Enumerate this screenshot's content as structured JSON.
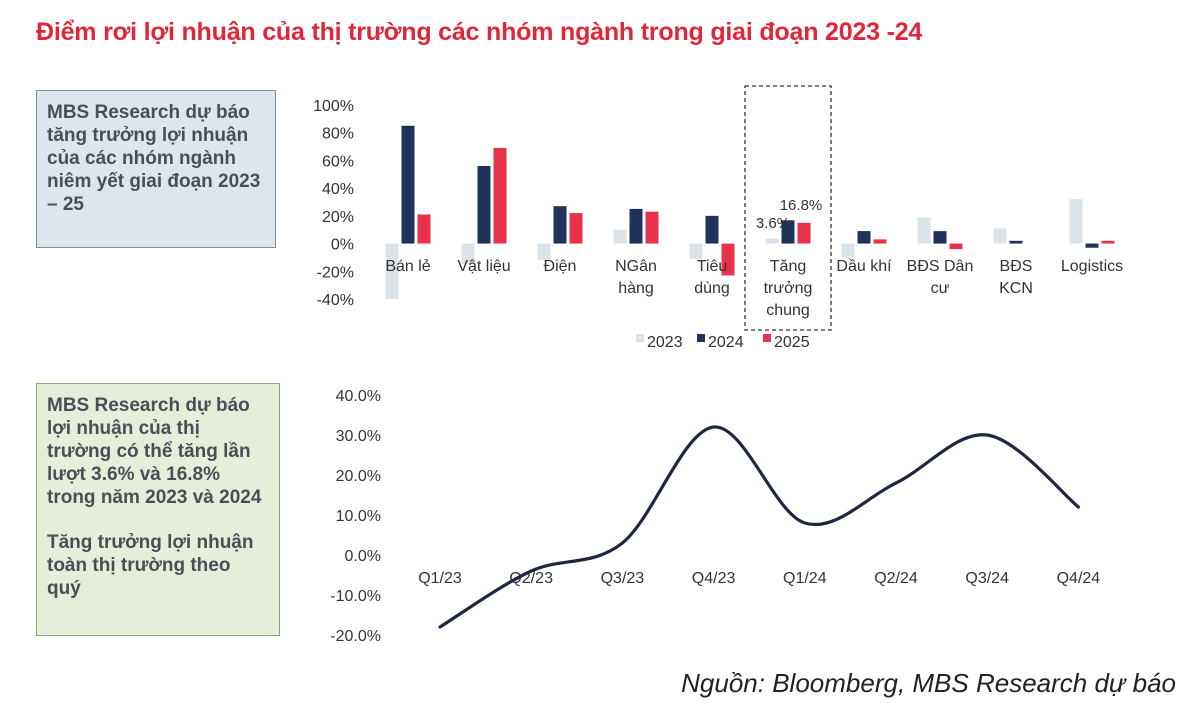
{
  "page": {
    "title": "Điểm rơi lợi nhuận của thị trường các nhóm ngành trong giai đoạn 2023 -24",
    "source": "Nguồn: Bloomberg, MBS Research dự báo"
  },
  "notes": {
    "top": "MBS Research dự báo tăng trưởng lợi nhuận của các nhóm ngành niêm yết giai đoạn 2023 – 25",
    "bottom_1": "MBS Research dự báo lợi nhuận của thị trường có thể tăng lần lượt 3.6% và 16.8% trong năm 2023 và 2024",
    "bottom_2": "Tăng trưởng lợi nhuận toàn thị trường theo quý"
  },
  "colors": {
    "title": "#e0263b",
    "s2023": "#dbe3e8",
    "s2024": "#1f3259",
    "s2025": "#e8314a",
    "line": "#1f2740"
  },
  "chart_data": [
    {
      "type": "bar",
      "title": "",
      "categories": [
        [
          "Bán lẻ"
        ],
        [
          "Vật liệu"
        ],
        [
          "Điện"
        ],
        [
          "NGân",
          "hàng"
        ],
        [
          "Tiêu",
          "dùng"
        ],
        [
          "Tăng",
          "trưởng",
          "chung"
        ],
        [
          "Dầu khí"
        ],
        [
          "BĐS Dân",
          "cư"
        ],
        [
          "BĐS",
          "KCN"
        ],
        [
          "Logistics"
        ]
      ],
      "series": [
        {
          "name": "2023",
          "values": [
            -40,
            -15,
            -12,
            10,
            -11,
            3.6,
            -10,
            19,
            11,
            32
          ]
        },
        {
          "name": "2024",
          "values": [
            85,
            56,
            27,
            25,
            20,
            16.8,
            9,
            9,
            2,
            -3
          ]
        },
        {
          "name": "2025",
          "values": [
            21,
            69,
            22,
            23,
            -23,
            15,
            3,
            -4,
            0,
            2
          ]
        }
      ],
      "ylim": [
        -40,
        100
      ],
      "yticks": [
        "100%",
        "80%",
        "60%",
        "40%",
        "20%",
        "0%",
        "-20%",
        "-40%"
      ],
      "yticks_values": [
        100,
        80,
        60,
        40,
        20,
        0,
        -20,
        -40
      ],
      "highlight_category": 5,
      "annotations": [
        "16.8%",
        "3.6%"
      ],
      "legend": [
        "2023",
        "2024",
        "2025"
      ],
      "legend_position": "bottom"
    },
    {
      "type": "line",
      "title": "",
      "categories": [
        "Q1/23",
        "Q2/23",
        "Q3/23",
        "Q4/23",
        "Q1/24",
        "Q2/24",
        "Q3/24",
        "Q4/24"
      ],
      "series": [
        {
          "name": "Tăng trưởng lợi nhuận toàn thị trường",
          "values": [
            -18,
            -4,
            3,
            32,
            8,
            18,
            30,
            12
          ]
        }
      ],
      "ylim": [
        -20,
        40
      ],
      "yticks": [
        "40.0%",
        "30.0%",
        "20.0%",
        "10.0%",
        "0.0%",
        "-10.0%",
        "-20.0%"
      ],
      "yticks_values": [
        40,
        30,
        20,
        10,
        0,
        -10,
        -20
      ],
      "smooth": true
    }
  ]
}
